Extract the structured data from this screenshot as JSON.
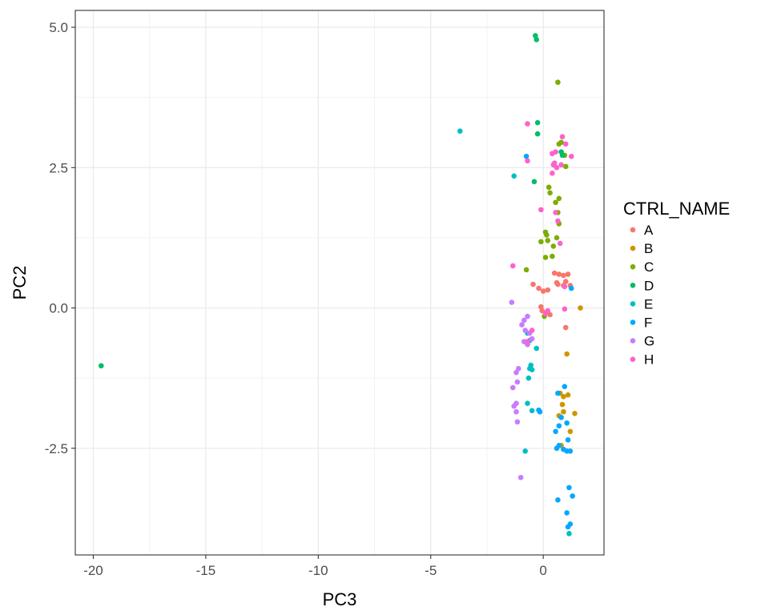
{
  "chart_data": {
    "type": "scatter",
    "title": "",
    "xlabel": "PC3",
    "ylabel": "PC2",
    "xlim": [
      -20.8,
      2.7
    ],
    "ylim": [
      -4.4,
      5.3
    ],
    "x_ticks": [
      -20,
      -15,
      -10,
      -5,
      0
    ],
    "x_tick_labels": [
      "-20",
      "-15",
      "-10",
      "-5",
      "0"
    ],
    "y_ticks": [
      5.0,
      2.5,
      0.0,
      -2.5
    ],
    "y_tick_labels": [
      "5.0",
      "2.5",
      "0.0",
      "-2.5"
    ],
    "grid": true,
    "legend": {
      "title": "CTRL_NAME",
      "placement": "right"
    },
    "series": [
      {
        "name": "A",
        "color": "#F8766D",
        "points": [
          [
            0.5,
            0.62
          ],
          [
            0.7,
            0.6
          ],
          [
            0.9,
            0.58
          ],
          [
            1.1,
            0.6
          ],
          [
            0.6,
            0.45
          ],
          [
            1.0,
            0.47
          ],
          [
            1.2,
            0.4
          ],
          [
            0.9,
            0.4
          ],
          [
            0.65,
            0.42
          ],
          [
            -0.45,
            0.42
          ],
          [
            -0.2,
            0.35
          ],
          [
            0.0,
            0.3
          ],
          [
            0.2,
            0.32
          ],
          [
            -0.1,
            0.02
          ],
          [
            -0.05,
            -0.05
          ],
          [
            0.15,
            -0.08
          ],
          [
            0.3,
            -0.12
          ],
          [
            1.0,
            -0.35
          ]
        ]
      },
      {
        "name": "B",
        "color": "#CD9600",
        "points": [
          [
            1.65,
            0.0
          ],
          [
            1.05,
            -0.82
          ],
          [
            0.75,
            -1.52
          ],
          [
            0.9,
            -1.58
          ],
          [
            1.1,
            -1.55
          ],
          [
            0.85,
            -1.72
          ],
          [
            0.7,
            -1.92
          ],
          [
            0.9,
            -1.85
          ],
          [
            1.4,
            -1.88
          ],
          [
            1.2,
            -2.2
          ],
          [
            0.8,
            -2.45
          ]
        ]
      },
      {
        "name": "C",
        "color": "#7CAE00",
        "points": [
          [
            0.65,
            4.02
          ],
          [
            0.7,
            2.92
          ],
          [
            0.8,
            2.95
          ],
          [
            0.95,
            2.72
          ],
          [
            1.0,
            2.52
          ],
          [
            0.25,
            2.15
          ],
          [
            0.3,
            2.05
          ],
          [
            0.7,
            1.95
          ],
          [
            0.55,
            1.88
          ],
          [
            0.65,
            1.7
          ],
          [
            0.1,
            1.35
          ],
          [
            0.15,
            1.3
          ],
          [
            0.7,
            1.5
          ],
          [
            0.6,
            1.25
          ],
          [
            -0.1,
            1.18
          ],
          [
            0.2,
            1.2
          ],
          [
            0.45,
            1.1
          ],
          [
            0.4,
            0.92
          ],
          [
            0.1,
            0.9
          ],
          [
            -0.75,
            0.68
          ],
          [
            0.05,
            -0.15
          ]
        ]
      },
      {
        "name": "D",
        "color": "#00BE67",
        "points": [
          [
            -0.35,
            4.85
          ],
          [
            -0.3,
            4.78
          ],
          [
            -0.25,
            3.3
          ],
          [
            -0.25,
            3.1
          ],
          [
            0.85,
            2.72
          ],
          [
            0.8,
            2.78
          ],
          [
            -0.4,
            2.25
          ],
          [
            -19.65,
            -1.03
          ]
        ]
      },
      {
        "name": "E",
        "color": "#00BFC4",
        "points": [
          [
            -3.7,
            3.15
          ],
          [
            -1.3,
            2.35
          ],
          [
            -0.7,
            -0.45
          ],
          [
            -0.6,
            -0.58
          ],
          [
            -0.7,
            -0.65
          ],
          [
            -0.3,
            -0.72
          ],
          [
            -0.55,
            -1.02
          ],
          [
            -0.6,
            -1.08
          ],
          [
            -0.65,
            -1.25
          ],
          [
            -0.5,
            -1.1
          ],
          [
            -0.7,
            -1.7
          ],
          [
            -0.5,
            -1.83
          ],
          [
            -0.8,
            -2.55
          ],
          [
            1.15,
            -4.02
          ]
        ]
      },
      {
        "name": "F",
        "color": "#00A9FF",
        "points": [
          [
            -0.75,
            2.7
          ],
          [
            1.25,
            0.35
          ],
          [
            0.95,
            -1.4
          ],
          [
            0.65,
            -1.52
          ],
          [
            -0.2,
            -1.82
          ],
          [
            -0.15,
            -1.85
          ],
          [
            0.8,
            -1.95
          ],
          [
            0.7,
            -2.1
          ],
          [
            1.05,
            -2.05
          ],
          [
            0.55,
            -2.2
          ],
          [
            1.1,
            -2.35
          ],
          [
            0.7,
            -2.45
          ],
          [
            0.6,
            -2.5
          ],
          [
            0.9,
            -2.52
          ],
          [
            1.05,
            -2.55
          ],
          [
            1.2,
            -2.55
          ],
          [
            1.15,
            -3.2
          ],
          [
            1.3,
            -3.35
          ],
          [
            0.65,
            -3.42
          ],
          [
            1.05,
            -3.65
          ],
          [
            1.2,
            -3.85
          ],
          [
            1.1,
            -3.9
          ]
        ]
      },
      {
        "name": "G",
        "color": "#C77CFF",
        "points": [
          [
            -1.4,
            0.1
          ],
          [
            -0.7,
            -0.15
          ],
          [
            -0.85,
            -0.22
          ],
          [
            -0.95,
            -0.3
          ],
          [
            -0.8,
            -0.4
          ],
          [
            -0.6,
            -0.45
          ],
          [
            -0.5,
            -0.55
          ],
          [
            -0.85,
            -0.6
          ],
          [
            -0.7,
            -0.65
          ],
          [
            -1.1,
            -1.08
          ],
          [
            -1.2,
            -1.15
          ],
          [
            -1.15,
            -1.32
          ],
          [
            -1.35,
            -1.42
          ],
          [
            -1.2,
            -1.7
          ],
          [
            -1.3,
            -1.75
          ],
          [
            -1.2,
            -1.85
          ],
          [
            -1.15,
            -2.03
          ],
          [
            -1.0,
            -3.02
          ]
        ]
      },
      {
        "name": "H",
        "color": "#FF61CC",
        "points": [
          [
            -0.7,
            3.28
          ],
          [
            0.85,
            3.05
          ],
          [
            1.0,
            2.92
          ],
          [
            0.4,
            2.75
          ],
          [
            0.55,
            2.78
          ],
          [
            1.25,
            2.7
          ],
          [
            -0.7,
            2.62
          ],
          [
            0.5,
            2.58
          ],
          [
            0.6,
            2.5
          ],
          [
            0.8,
            2.55
          ],
          [
            0.4,
            2.4
          ],
          [
            0.45,
            2.55
          ],
          [
            -0.1,
            1.75
          ],
          [
            0.55,
            1.7
          ],
          [
            0.65,
            1.55
          ],
          [
            0.75,
            1.15
          ],
          [
            -1.35,
            0.75
          ],
          [
            0.95,
            0.38
          ],
          [
            0.95,
            -0.02
          ],
          [
            0.2,
            -0.05
          ],
          [
            0.1,
            -0.1
          ],
          [
            -0.5,
            -0.4
          ],
          [
            -0.7,
            -0.6
          ]
        ]
      }
    ]
  }
}
